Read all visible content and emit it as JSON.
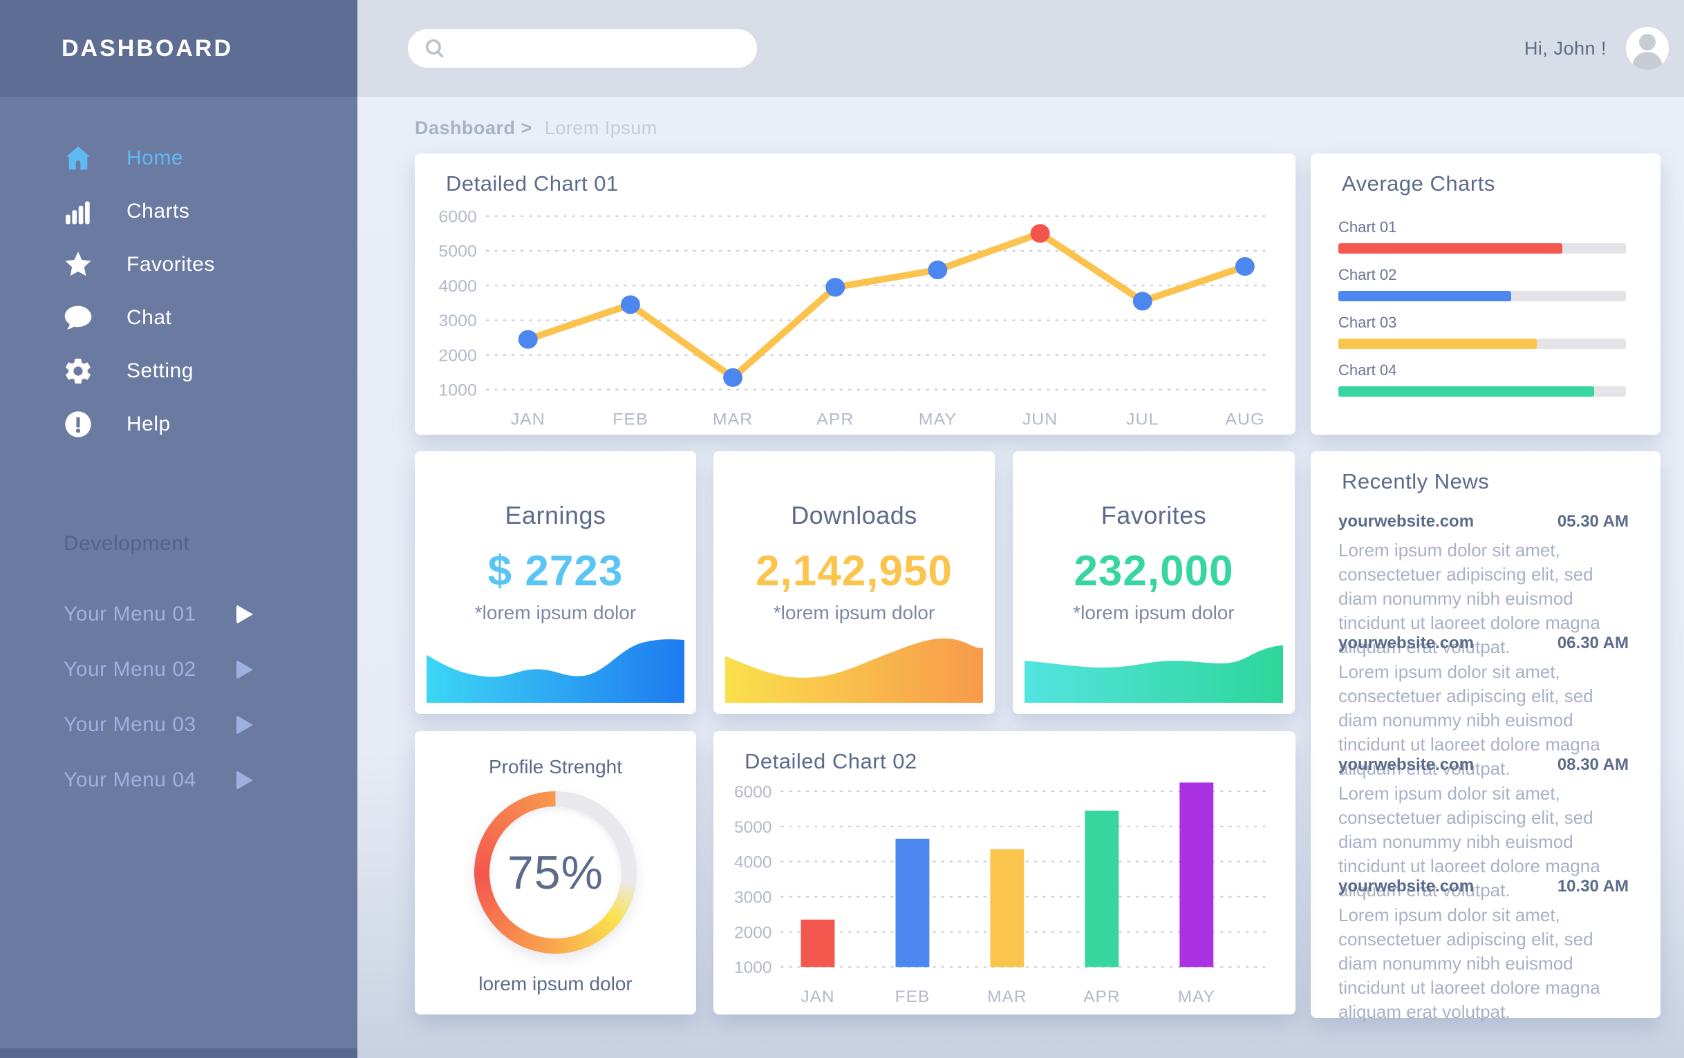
{
  "app": {
    "title": "DASHBOARD",
    "greeting": "Hi, John !"
  },
  "search": {
    "placeholder": ""
  },
  "breadcrumb": {
    "section": "Dashboard >",
    "page": "Lorem Ipsum"
  },
  "sidebar": {
    "items": [
      {
        "label": "Home",
        "icon": "home",
        "active": true
      },
      {
        "label": "Charts",
        "icon": "bar-chart",
        "active": false
      },
      {
        "label": "Favorites",
        "icon": "star",
        "active": false
      },
      {
        "label": "Chat",
        "icon": "chat-bubble",
        "active": false
      },
      {
        "label": "Setting",
        "icon": "gear",
        "active": false
      },
      {
        "label": "Help",
        "icon": "help",
        "active": false
      }
    ],
    "section_title": "Development",
    "dev_items": [
      {
        "label": "Your Menu 01"
      },
      {
        "label": "Your Menu 02"
      },
      {
        "label": "Your Menu 03"
      },
      {
        "label": "Your Menu 04"
      }
    ]
  },
  "cards": {
    "chart01_title": "Detailed Chart 01",
    "chart02_title": "Detailed Chart 02",
    "average": {
      "title": "Average Charts"
    },
    "earnings": {
      "title": "Earnings",
      "value": "$ 2723",
      "note": "*lorem ipsum dolor",
      "accent": "#58C5F4",
      "wave_from": "#3DD6F5",
      "wave_to": "#1E7BF0"
    },
    "downloads": {
      "title": "Downloads",
      "value": "2,142,950",
      "note": "*lorem ipsum dolor",
      "accent": "#FBC44D",
      "wave_from": "#FBE04C",
      "wave_to": "#F79A4B"
    },
    "favorites": {
      "title": "Favorites",
      "value": "232,000",
      "note": "*lorem ipsum dolor",
      "accent": "#36D69E",
      "wave_from": "#53E4E0",
      "wave_to": "#2ED69A"
    },
    "profile": {
      "title": "Profile Strenght",
      "percent_label": "75%",
      "note": "lorem ipsum dolor"
    },
    "news": {
      "title": "Recently News",
      "items": [
        {
          "source": "yourwebsite.com",
          "time": "05.30 AM",
          "text": "Lorem ipsum dolor sit amet, consectetuer adipiscing elit, sed diam nonummy nibh euismod tincidunt ut laoreet dolore magna aliquam erat volutpat."
        },
        {
          "source": "yourwebsite.com",
          "time": "06.30 AM",
          "text": "Lorem ipsum dolor sit amet, consectetuer adipiscing elit, sed diam nonummy nibh euismod tincidunt ut laoreet dolore magna aliquam erat volutpat."
        },
        {
          "source": "yourwebsite.com",
          "time": "08.30 AM",
          "text": "Lorem ipsum dolor sit amet, consectetuer adipiscing elit, sed diam nonummy nibh euismod tincidunt ut laoreet dolore magna aliquam erat volutpat."
        },
        {
          "source": "yourwebsite.com",
          "time": "10.30 AM",
          "text": "Lorem ipsum dolor sit amet, consectetuer adipiscing elit, sed diam nonummy nibh euismod tincidunt ut laoreet dolore magna aliquam erat volutpat."
        }
      ]
    }
  },
  "chart_data": [
    {
      "id": "chart01",
      "type": "line",
      "title": "Detailed Chart 01",
      "categories": [
        "JAN",
        "FEB",
        "MAR",
        "APR",
        "MAY",
        "JUN",
        "JUL",
        "AUG"
      ],
      "values": [
        2450,
        3450,
        1350,
        3950,
        4450,
        5500,
        3550,
        4550
      ],
      "ylim": [
        1000,
        6000
      ],
      "ytick_step": 1000,
      "grid": "dotted-horizontal",
      "line_color": "#FBC24D",
      "point_color": "#4C86EF",
      "highlight": {
        "index": 5,
        "color": "#F4534E"
      }
    },
    {
      "id": "chart02",
      "type": "bar",
      "title": "Detailed Chart 02",
      "categories": [
        "JAN",
        "FEB",
        "MAR",
        "APR",
        "MAY"
      ],
      "values": [
        2350,
        4650,
        4350,
        5450,
        6250
      ],
      "bar_colors": [
        "#F4574E",
        "#4C86EF",
        "#FBC44D",
        "#36D69E",
        "#AB32E3"
      ],
      "ylim": [
        1000,
        6000
      ],
      "ytick_step": 1000,
      "grid": "dotted-horizontal"
    },
    {
      "id": "average",
      "type": "bar",
      "orientation": "horizontal",
      "title": "Average Charts",
      "categories": [
        "Chart 01",
        "Chart 02",
        "Chart 03",
        "Chart 04"
      ],
      "values": [
        78,
        60,
        69,
        89
      ],
      "unit": "%",
      "bar_colors": [
        "#F4574E",
        "#4C86EF",
        "#FBC44D",
        "#36D69E"
      ],
      "track_color": "#E4E4E8"
    },
    {
      "id": "profile",
      "type": "donut",
      "title": "Profile Strenght",
      "value": 75,
      "label": "75%",
      "ring_colors": [
        "#FBE24E",
        "#F9A34D",
        "#F4564E",
        "#F89A4D"
      ],
      "rest_color": "#E9E9ED"
    }
  ]
}
